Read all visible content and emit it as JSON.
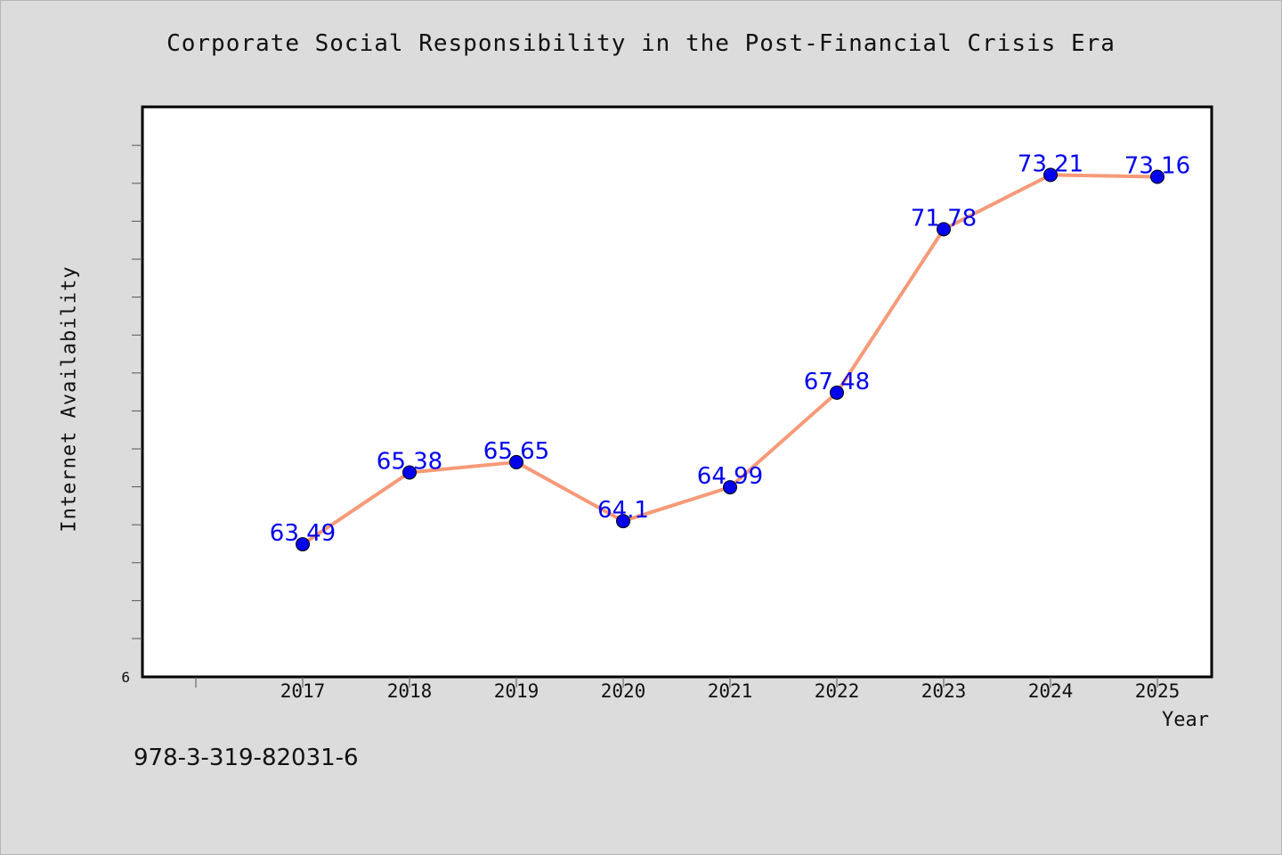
{
  "chart_data": {
    "type": "line",
    "title": "Corporate Social Responsibility in the Post-Financial Crisis Era",
    "xlabel": "Year",
    "ylabel": "Internet Availability",
    "x": [
      "2017",
      "2018",
      "2019",
      "2020",
      "2021",
      "2022",
      "2023",
      "2024",
      "2025"
    ],
    "series": [
      {
        "values": [
          63.49,
          65.38,
          65.65,
          64.1,
          64.99,
          67.48,
          71.78,
          73.21,
          73.16
        ],
        "data_labels": [
          "63.49",
          "65.38",
          "65.65",
          "64.1",
          "64.99",
          "67.48",
          "71.78",
          "73.21",
          "73.16"
        ]
      }
    ],
    "ylim": [
      60,
      75
    ],
    "y_tick_label": "6",
    "grid": false,
    "colors": {
      "line": "#f79a78",
      "marker": "#0000ee",
      "label": "#0000ee"
    }
  },
  "footer": {
    "code": "978-3-319-82031-6"
  }
}
